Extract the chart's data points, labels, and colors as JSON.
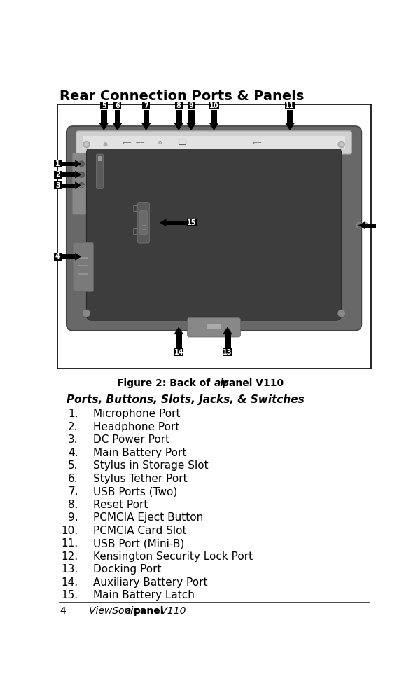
{
  "title": "Rear Connection Ports & Panels",
  "section_header": "Ports, Buttons, Slots, Jacks, & Switches",
  "items": [
    "Microphone Port",
    "Headphone Port",
    "DC Power Port",
    "Main Battery Port",
    "Stylus in Storage Slot",
    "Stylus Tether Port",
    "USB Ports (Two)",
    "Reset Port",
    "PCMCIA Eject Button",
    "PCMCIA Card Slot",
    "USB Port (Mini-B)",
    "Kensington Security Lock Port",
    "Docking Port",
    "Auxiliary Battery Port",
    "Main Battery Latch"
  ],
  "footer_page": "4",
  "bg_color": "#ffffff",
  "border_color": "#000000",
  "device_outer_color": "#707070",
  "device_top_color": "#cccccc",
  "device_inner_color": "#4a4a4a",
  "device_dark_color": "#3a3a3a",
  "label_bg": "#000000",
  "label_fg": "#ffffff"
}
